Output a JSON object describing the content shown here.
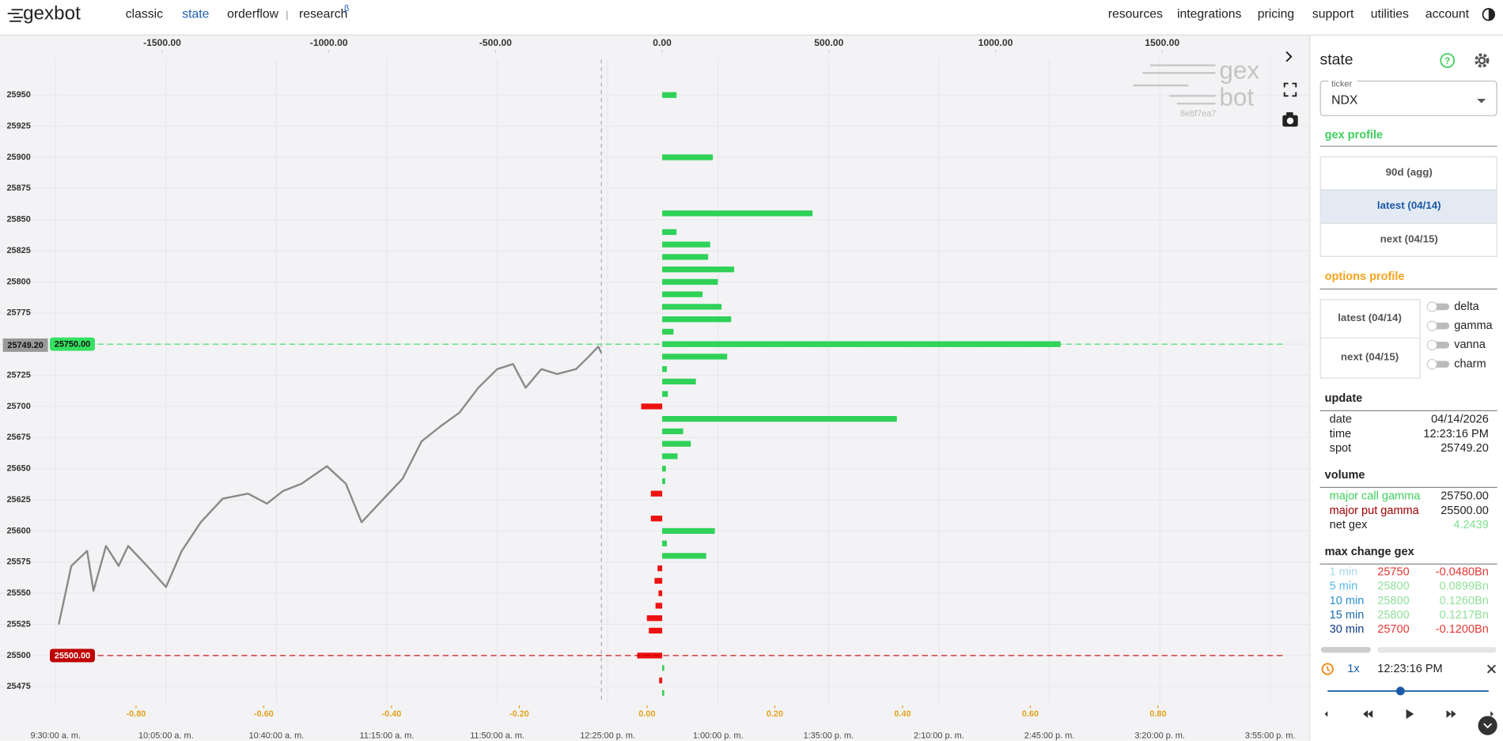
{
  "nav": {
    "logo": "gexbot",
    "left": [
      "classic",
      "state",
      "orderflow",
      "research"
    ],
    "research_sup": "β",
    "divider": "|",
    "right": [
      "resources",
      "integrations",
      "pricing",
      "support",
      "utilities",
      "account"
    ]
  },
  "chart_data": {
    "type": "bar",
    "orientation": "horizontal",
    "y": [
      25950,
      25900,
      25855,
      25840,
      25830,
      25820,
      25810,
      25800,
      25790,
      25780,
      25770,
      25760,
      25750,
      25740,
      25730,
      25720,
      25710,
      25700,
      25690,
      25680,
      25670,
      25660,
      25650,
      25640,
      25630,
      25610,
      25600,
      25590,
      25580,
      25570,
      25560,
      25550,
      25540,
      25530,
      25520,
      25500,
      25490,
      25480,
      25470
    ],
    "values": [
      43,
      152,
      451,
      43,
      144,
      138,
      216,
      167,
      121,
      178,
      207,
      34,
      1195,
      195,
      14,
      101,
      17,
      -63,
      704,
      63,
      86,
      46,
      11,
      9,
      -34,
      -34,
      158,
      14,
      132,
      -14,
      -23,
      -11,
      -20,
      -46,
      -40,
      -75,
      6,
      -9,
      6
    ],
    "colors": {
      "positive": "#2fd158",
      "negative": "#ee1111"
    },
    "xlim": [
      -1975,
      1930
    ],
    "xticks": [
      {
        "value": -1500,
        "label": "-1500.00"
      },
      {
        "value": -1000,
        "label": "-1000.00"
      },
      {
        "value": -500,
        "label": "-500.00"
      },
      {
        "value": 0,
        "label": "0.00"
      },
      {
        "value": 500,
        "label": "500.00"
      },
      {
        "value": 1000,
        "label": "1000.00"
      },
      {
        "value": 1500,
        "label": "1500.00"
      }
    ],
    "ylim": [
      25461.5,
      25978.5
    ],
    "yticks": [
      25950,
      25925,
      25900,
      25875,
      25850,
      25825,
      25800,
      25775,
      25750,
      25725,
      25700,
      25675,
      25650,
      25625,
      25600,
      25575,
      25550,
      25525,
      25500,
      25475
    ],
    "x2lim": [
      553.6,
      966.2
    ],
    "x2ticks": [
      {
        "value": 570,
        "label": "9:30:00 a. m."
      },
      {
        "value": 605,
        "label": "10:05:00 a. m."
      },
      {
        "value": 640,
        "label": "10:40:00 a. m."
      },
      {
        "value": 675,
        "label": "11:15:00 a. m."
      },
      {
        "value": 710,
        "label": "11:50:00 a. m."
      },
      {
        "value": 745,
        "label": "12:25:00 p. m."
      },
      {
        "value": 780,
        "label": "1:00:00 p. m."
      },
      {
        "value": 815,
        "label": "1:35:00 p. m."
      },
      {
        "value": 850,
        "label": "2:10:00 p. m."
      },
      {
        "value": 885,
        "label": "2:45:00 p. m."
      },
      {
        "value": 920,
        "label": "3:20:00 p. m."
      },
      {
        "value": 955,
        "label": "3:55:00 p. m."
      }
    ],
    "x3lim": [
      -1.0069,
      1.0309
    ],
    "x3ticks": [
      {
        "value": -0.8,
        "label": "-0.80"
      },
      {
        "value": -0.6,
        "label": "-0.60"
      },
      {
        "value": -0.4,
        "label": "-0.40"
      },
      {
        "value": -0.2,
        "label": "-0.20"
      },
      {
        "value": 0,
        "label": "0.00"
      },
      {
        "value": 0.2,
        "label": "0.20"
      },
      {
        "value": 0.4,
        "label": "0.40"
      },
      {
        "value": 0.6,
        "label": "0.60"
      },
      {
        "value": 0.8,
        "label": "0.80"
      }
    ],
    "x3_color": "#e0a41f",
    "grid": true,
    "price_line": {
      "color": "#8a8a8a",
      "x": [
        571,
        575,
        580,
        582,
        586,
        590,
        593,
        599,
        605,
        610,
        616,
        623,
        631,
        637,
        642,
        648,
        656,
        662,
        667,
        674,
        680,
        686,
        692,
        698,
        704,
        710,
        715,
        719,
        724,
        729,
        735,
        739,
        742,
        743
      ],
      "values": [
        25525,
        25572,
        25584,
        25552,
        25588,
        25572,
        25588,
        25572,
        25555,
        25584,
        25607,
        25626,
        25630,
        25622,
        25632,
        25638,
        25652,
        25638,
        25607,
        25626,
        25642,
        25672,
        25684,
        25695,
        25715,
        25730,
        25734,
        25715,
        25730,
        25726,
        25730,
        25740,
        25748,
        25743
      ]
    },
    "current_time": 743,
    "spot": {
      "value": 25749.2,
      "label": "25749.20"
    },
    "call_wall": {
      "value": 25750,
      "label": "25750.00"
    },
    "put_wall": {
      "value": 25500,
      "label": "25500.00"
    }
  },
  "watermark": {
    "top": "gex",
    "bottom": "bot",
    "id": "8e8f7ea7"
  },
  "sidebar": {
    "title": "state",
    "ticker_label": "ticker",
    "ticker": "NDX",
    "gex_profile": {
      "title": "gex profile",
      "options": [
        "90d (agg)",
        "latest (04/14)",
        "next (04/15)"
      ]
    },
    "options_profile": {
      "title": "options profile",
      "options": [
        "latest (04/14)",
        "next (04/15)"
      ],
      "toggles": [
        "delta",
        "gamma",
        "vanna",
        "charm"
      ]
    },
    "update": {
      "title": "update",
      "rows": [
        [
          "date",
          "04/14/2026"
        ],
        [
          "time",
          "12:23:16 PM"
        ],
        [
          "spot",
          "25749.20"
        ]
      ]
    },
    "volume": {
      "title": "volume",
      "rows": [
        [
          "major call gamma",
          "25750.00"
        ],
        [
          "major put gamma",
          "25500.00"
        ],
        [
          "net gex",
          "4.2439"
        ]
      ]
    },
    "max_change": {
      "title": "max change gex",
      "rows": [
        [
          "1 min",
          "25750",
          "-0.0480Bn"
        ],
        [
          "5 min",
          "25800",
          "0.0899Bn"
        ],
        [
          "10 min",
          "25800",
          "0.1260Bn"
        ],
        [
          "15 min",
          "25800",
          "0.1217Bn"
        ],
        [
          "30 min",
          "25700",
          "-0.1200Bn"
        ]
      ]
    },
    "player": {
      "speed": "1x",
      "time": "12:23:16 PM"
    }
  }
}
